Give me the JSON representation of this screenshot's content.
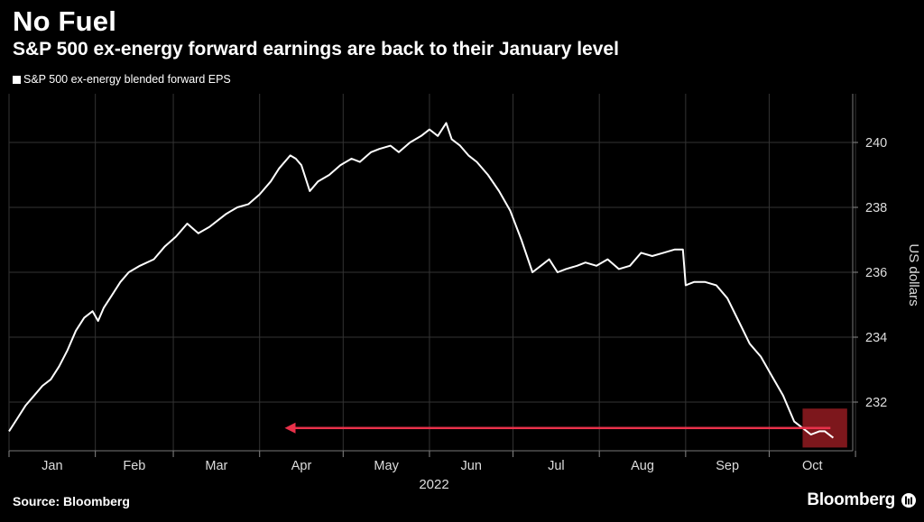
{
  "header": {
    "title": "No Fuel",
    "subtitle": "S&P 500 ex-energy forward earnings are back to their January level"
  },
  "legend": {
    "label": "S&P 500 ex-energy blended forward EPS"
  },
  "footer": {
    "source": "Source: Bloomberg",
    "logo": "Bloomberg"
  },
  "colors": {
    "background": "#000000",
    "line": "#ffffff",
    "grid": "#333333",
    "highlight": "#8b1a1f",
    "arrow": "#e8314a"
  },
  "chart_data": {
    "type": "line",
    "title": "No Fuel",
    "subtitle": "S&P 500 ex-energy forward earnings are back to their January level",
    "xlabel": "2022",
    "ylabel": "US dollars",
    "ylim": [
      230.5,
      241.5
    ],
    "yticks": [
      232,
      234,
      236,
      238,
      240
    ],
    "xticks": [
      "Jan",
      "Feb",
      "Mar",
      "Apr",
      "May",
      "Jun",
      "Jul",
      "Aug",
      "Sep",
      "Oct"
    ],
    "grid": true,
    "legend_position": "top-left",
    "series": [
      {
        "name": "S&P 500 ex-energy blended forward EPS",
        "x": [
          "2022-01-01",
          "2022-01-04",
          "2022-01-07",
          "2022-01-10",
          "2022-01-13",
          "2022-01-16",
          "2022-01-19",
          "2022-01-22",
          "2022-01-25",
          "2022-01-28",
          "2022-01-31",
          "2022-02-02",
          "2022-02-04",
          "2022-02-07",
          "2022-02-10",
          "2022-02-13",
          "2022-02-17",
          "2022-02-22",
          "2022-02-26",
          "2022-03-02",
          "2022-03-06",
          "2022-03-10",
          "2022-03-14",
          "2022-03-17",
          "2022-03-20",
          "2022-03-24",
          "2022-03-28",
          "2022-04-01",
          "2022-04-05",
          "2022-04-08",
          "2022-04-12",
          "2022-04-14",
          "2022-04-16",
          "2022-04-19",
          "2022-04-22",
          "2022-04-26",
          "2022-04-30",
          "2022-05-04",
          "2022-05-07",
          "2022-05-11",
          "2022-05-14",
          "2022-05-18",
          "2022-05-21",
          "2022-05-25",
          "2022-05-29",
          "2022-06-01",
          "2022-06-04",
          "2022-06-07",
          "2022-06-09",
          "2022-06-12",
          "2022-06-15",
          "2022-06-18",
          "2022-06-22",
          "2022-06-26",
          "2022-06-30",
          "2022-07-04",
          "2022-07-08",
          "2022-07-11",
          "2022-07-14",
          "2022-07-17",
          "2022-07-20",
          "2022-07-24",
          "2022-07-27",
          "2022-07-31",
          "2022-08-04",
          "2022-08-08",
          "2022-08-12",
          "2022-08-16",
          "2022-08-20",
          "2022-08-24",
          "2022-08-28",
          "2022-08-31",
          "2022-09-01",
          "2022-09-04",
          "2022-09-08",
          "2022-09-12",
          "2022-09-16",
          "2022-09-20",
          "2022-09-24",
          "2022-09-28",
          "2022-10-02",
          "2022-10-06",
          "2022-10-10",
          "2022-10-13",
          "2022-10-16",
          "2022-10-19",
          "2022-10-21",
          "2022-10-24"
        ],
        "values": [
          231.1,
          231.5,
          231.9,
          232.2,
          232.5,
          232.7,
          233.1,
          233.6,
          234.2,
          234.6,
          234.8,
          234.5,
          234.9,
          235.3,
          235.7,
          236.0,
          236.2,
          236.4,
          236.8,
          237.1,
          237.5,
          237.2,
          237.4,
          237.6,
          237.8,
          238.0,
          238.1,
          238.4,
          238.8,
          239.2,
          239.6,
          239.5,
          239.3,
          238.5,
          238.8,
          239.0,
          239.3,
          239.5,
          239.4,
          239.7,
          239.8,
          239.9,
          239.7,
          240.0,
          240.2,
          240.4,
          240.2,
          240.6,
          240.1,
          239.9,
          239.6,
          239.4,
          239.0,
          238.5,
          237.9,
          237.0,
          236.0,
          236.2,
          236.4,
          236.0,
          236.1,
          236.2,
          236.3,
          236.2,
          236.4,
          236.1,
          236.2,
          236.6,
          236.5,
          236.6,
          236.7,
          236.7,
          235.6,
          235.7,
          235.7,
          235.6,
          235.2,
          234.5,
          233.8,
          233.4,
          232.8,
          232.2,
          231.4,
          231.2,
          231.0,
          231.1,
          231.1,
          230.9
        ]
      }
    ],
    "annotations": [
      {
        "type": "highlight-box",
        "start": "2022-10-13",
        "end": "2022-10-29",
        "ymin": 230.6,
        "ymax": 231.8
      },
      {
        "type": "arrow",
        "from_x": "2022-10-23",
        "to_x": "2022-04-10",
        "y": 231.2
      }
    ]
  }
}
